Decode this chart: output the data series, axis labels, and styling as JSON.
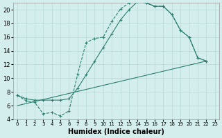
{
  "xlabel": "Humidex (Indice chaleur)",
  "bg_color": "#d4eeed",
  "grid_color": "#b8d8d4",
  "line_color": "#2a7d6e",
  "xlim": [
    -0.5,
    23.5
  ],
  "ylim": [
    4,
    21
  ],
  "yticks": [
    4,
    6,
    8,
    10,
    12,
    14,
    16,
    18,
    20
  ],
  "xticks": [
    0,
    1,
    2,
    3,
    4,
    5,
    6,
    7,
    8,
    9,
    10,
    11,
    12,
    13,
    14,
    15,
    16,
    17,
    18,
    19,
    20,
    21,
    22,
    23
  ],
  "line1_x": [
    0,
    1,
    2,
    3,
    4,
    5,
    6,
    7,
    8,
    9,
    10,
    11,
    12,
    13,
    14,
    15,
    16,
    17,
    18,
    19,
    20,
    21,
    22
  ],
  "line1_y": [
    7.5,
    6.7,
    6.5,
    4.8,
    5.0,
    4.5,
    5.2,
    10.5,
    15.2,
    15.8,
    16.0,
    18.3,
    20.1,
    21.0,
    21.2,
    21.0,
    20.5,
    20.5,
    19.3,
    17.0,
    16.0,
    13.0,
    12.5
  ],
  "line2_x": [
    0,
    1,
    2,
    3,
    4,
    5,
    6,
    7,
    8,
    9,
    10,
    11,
    12,
    13,
    14,
    15,
    16,
    17,
    18,
    19,
    20,
    21,
    22
  ],
  "line2_y": [
    7.5,
    7.0,
    6.8,
    6.8,
    6.8,
    6.8,
    7.0,
    8.5,
    10.5,
    12.5,
    14.5,
    16.5,
    18.5,
    20.0,
    21.2,
    21.0,
    20.5,
    20.5,
    19.3,
    17.0,
    16.0,
    13.0,
    12.5
  ],
  "line3_x": [
    0,
    22
  ],
  "line3_y": [
    6.0,
    12.5
  ],
  "fontsize_label": 7,
  "fontsize_tick": 6
}
